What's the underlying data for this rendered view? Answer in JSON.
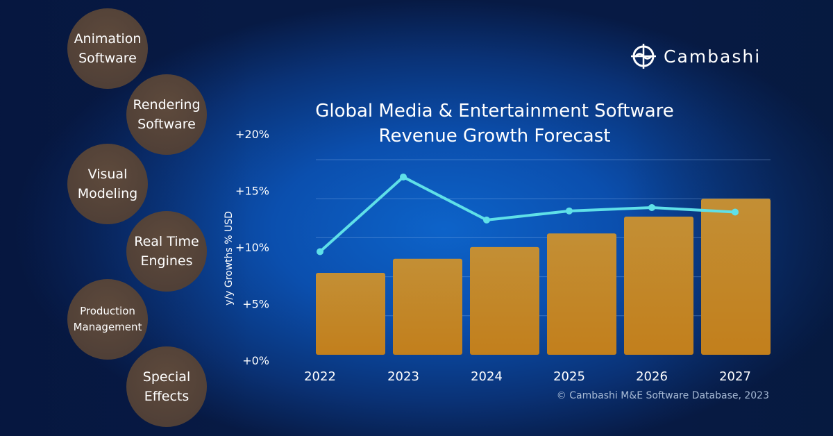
{
  "categories_side": [
    "Animation Software",
    "Rendering Software",
    "Visual Modeling",
    "Real Time Engines",
    "Production Management",
    "Special Effects"
  ],
  "logo": {
    "text": "Cambashi"
  },
  "source": "© Cambashi M&E Software Database, 2023",
  "colors": {
    "bar": "#c48a2a",
    "line": "#5fe0e8"
  },
  "chart_data": {
    "type": "bar+line",
    "title": "Global Media & Entertainment Software Revenue Growth Forecast",
    "title_lines": [
      "Global Media & Entertainment Software",
      "Revenue Growth Forecast"
    ],
    "ylabel": "y/y Growths % USD",
    "categories": [
      "2022",
      "2023",
      "2024",
      "2025",
      "2026",
      "2027"
    ],
    "ytick_labels": [
      "+0%",
      "+5%",
      "+10%",
      "+15%",
      "+20%"
    ],
    "ylim": [
      0,
      20
    ],
    "grid": true,
    "series": [
      {
        "type": "bar",
        "values_relative": [
          2.1,
          2.46,
          2.76,
          3.11,
          3.54,
          4.0
        ],
        "ylim_relative": [
          0,
          5
        ]
      },
      {
        "type": "line",
        "values": [
          9.6,
          16.2,
          12.4,
          13.2,
          13.5,
          13.1
        ]
      }
    ]
  }
}
